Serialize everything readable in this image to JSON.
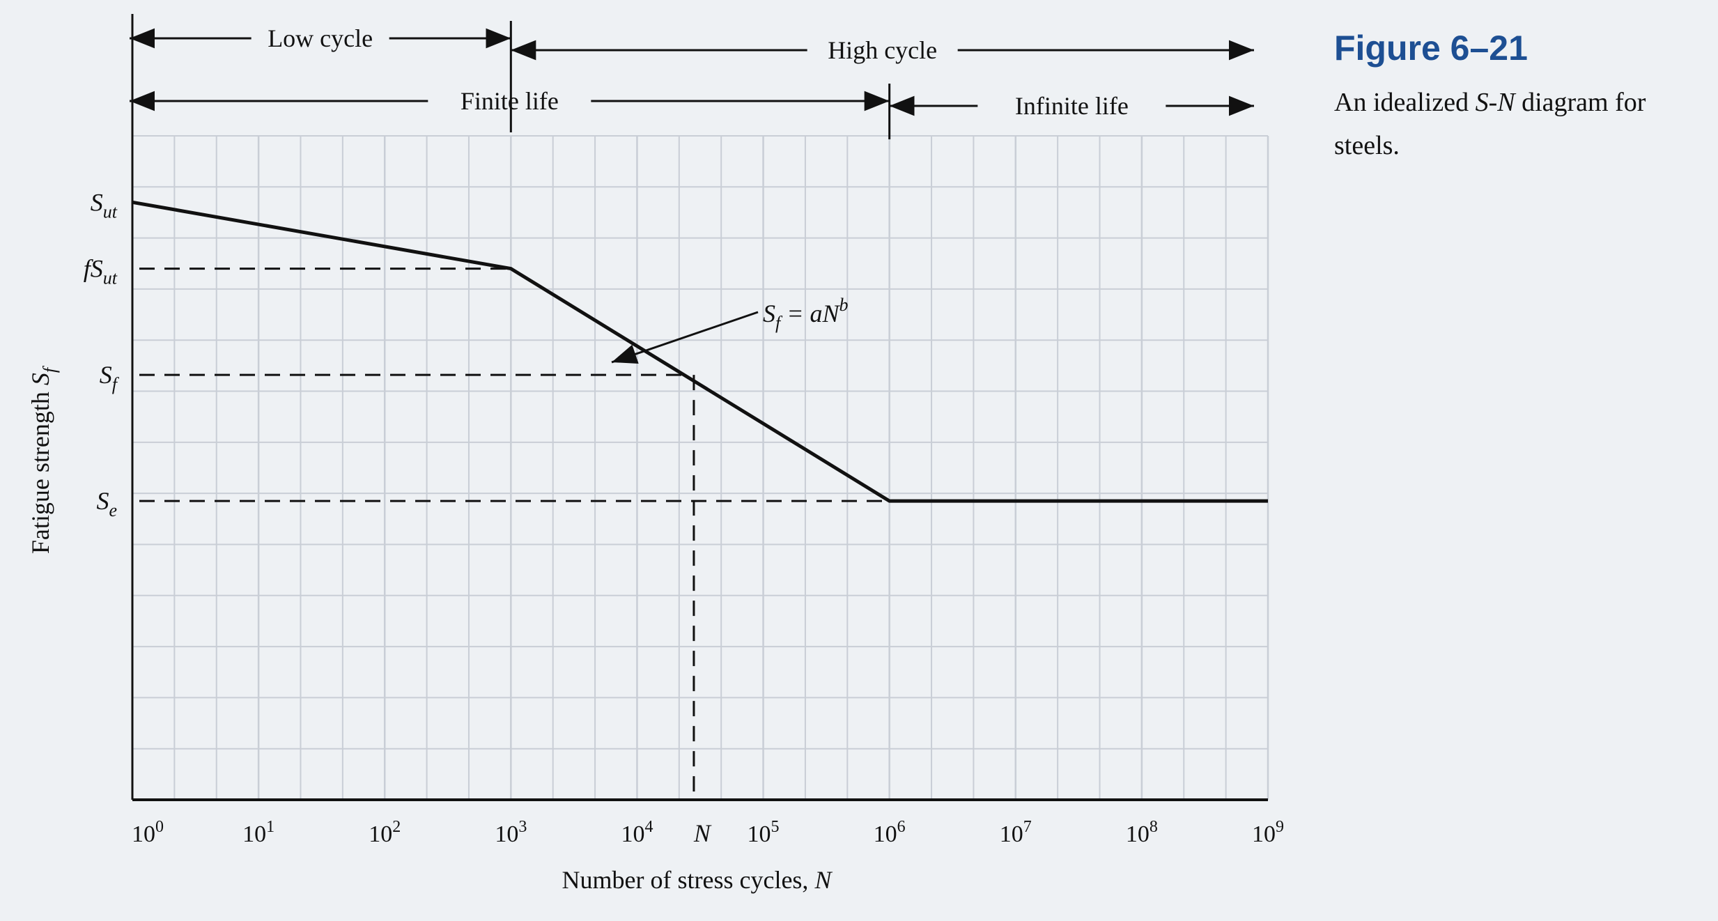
{
  "figure": {
    "label": "Figure 6–21",
    "caption_parts": [
      "An idealized ",
      "S-N",
      " diagram for steels."
    ]
  },
  "chart_data": {
    "type": "line",
    "x_scale": "log10",
    "x_ticks": [
      "10^0",
      "10^1",
      "10^2",
      "10^3",
      "10^4",
      "10^5",
      "10^6",
      "10^7",
      "10^8",
      "10^9"
    ],
    "x_tick_exponents": [
      0,
      1,
      2,
      3,
      4,
      5,
      6,
      7,
      8,
      9
    ],
    "xlabel_text": "Number of stress cycles, ",
    "xlabel_symbol": "N",
    "ylabel_text": "Fatigue strength ",
    "ylabel_symbol": "S",
    "ylabel_subscript": "f",
    "xlim_exponent": [
      0,
      9
    ],
    "y_reference_levels": [
      {
        "symbol": "S",
        "subscript": "ut",
        "prefix": "",
        "value": 0.9,
        "dashed": false
      },
      {
        "symbol": "S",
        "subscript": "ut",
        "prefix": "f",
        "value": 0.8,
        "dashed": true
      },
      {
        "symbol": "S",
        "subscript": "f",
        "prefix": "",
        "value": 0.64,
        "dashed": true
      },
      {
        "symbol": "S",
        "subscript": "e",
        "prefix": "",
        "value": 0.45,
        "dashed": true
      }
    ],
    "series": [
      {
        "points": [
          {
            "x_exp": 0,
            "y": 0.9
          },
          {
            "x_exp": 3,
            "y": 0.8
          },
          {
            "x_exp": 6,
            "y": 0.45
          },
          {
            "x_exp": 9,
            "y": 0.45
          }
        ]
      }
    ],
    "marker_N": {
      "label": "N",
      "x_exp": 4.45,
      "y": 0.64
    },
    "annotation": {
      "text_parts": [
        "S",
        "f",
        " = a",
        "N",
        "b"
      ]
    },
    "regions": {
      "low_cycle": {
        "label": "Low cycle",
        "from_exp": 0,
        "to_exp": 3
      },
      "high_cycle": {
        "label": "High cycle",
        "from_exp": 3,
        "to_exp": 9
      },
      "finite_life": {
        "label": "Finite life",
        "from_exp": 0,
        "to_exp": 6
      },
      "infinite_life": {
        "label": "Infinite life",
        "from_exp": 6,
        "to_exp": 9
      }
    },
    "grid": true,
    "colors": {
      "curve": "#111111",
      "grid": "#c9ced6",
      "title": "#1d4f93"
    }
  }
}
